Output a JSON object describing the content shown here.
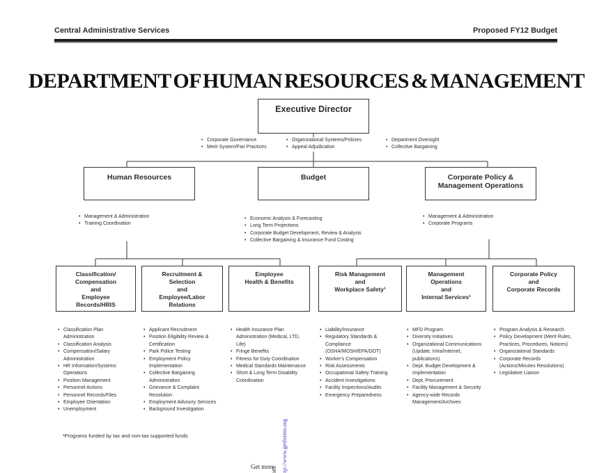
{
  "header": {
    "left": "Central Administrative Services",
    "right": "Proposed FY12 Budget"
  },
  "title": "DEPARTMENT OF HUMAN RESOURCES & MANAGEMENT",
  "org": {
    "root": {
      "label": "Executive Director",
      "bullet_columns": [
        [
          "Corporate Governance",
          "Merit System/Fair Practices"
        ],
        [
          "Organizational Systems/Policies",
          "Appeal Adjudication"
        ],
        [
          "Department Oversight",
          "Collective Bargaining"
        ]
      ]
    },
    "level2": [
      {
        "label": "Human Resources",
        "bullets": [
          "Management & Administration",
          "Training Coordination"
        ]
      },
      {
        "label": "Budget",
        "bullets": [
          "Economic Analysis & Forecasting",
          "Long Term Projections",
          "Corporate Budget Development, Review & Analysis",
          "Collective Bargaining & Insurance Fund Costing"
        ]
      },
      {
        "label": "Corporate Policy &\nManagement Operations",
        "bullets": [
          "Management & Administration",
          "Corporate Programs"
        ]
      }
    ],
    "level3": [
      {
        "label": "Classification/\nCompensation\nand\nEmployee\nRecords/HRIS",
        "bullets": [
          "Classification Plan Administration",
          "Classification Analysis",
          "Compensation/Salary Administration",
          "HR Information/Systems Operations",
          "Position Management",
          "Personnel Actions",
          "Personnel Records/Files",
          "Employee Orientation",
          "Unemployment"
        ]
      },
      {
        "label": "Recruitment &\nSelection\nand\nEmployee/Labor\nRelations",
        "bullets": [
          "Applicant Recruitment",
          "Position Eligibility Review & Certification",
          "Park Police Testing",
          "Employment Policy Implementation",
          "Collective Bargaining Administration",
          "Grievance & Complaint Resolution",
          "Employment Advisory Services",
          "Background Investigation"
        ]
      },
      {
        "label": "Employee\nHealth & Benefits",
        "bullets": [
          "Health Insurance Plan Administration (Medical, LTD, Life)",
          "Fringe Benefits",
          "Fitness for Duty Coordination",
          "Medical Standards Maintenance",
          "Short & Long Term Disability Coordination"
        ]
      },
      {
        "label": "Risk Management\nand\nWorkplace Safety¹",
        "bullets": [
          "Liability/Insurance",
          "Regulatory Standards & Compliance (OSHA/MOSH/EPA/DOT)",
          "Worker's Compensation",
          "Risk Assessments",
          "Occupational Safety Training",
          "Accident Investigations",
          "Facility Inspections/Audits",
          "Emergency Preparedness"
        ]
      },
      {
        "label": "Management\nOperations\nand\nInternal Services¹",
        "bullets": [
          "MFD Program",
          "Diversity Initiatives",
          "Organizational Communications (Update, Intra/Internet, publications)",
          "Dept. Budget Development & Implementation",
          "Dept. Procurement",
          "Facility Management & Security",
          "Agency-wide Records Management/Archives"
        ]
      },
      {
        "label": "Corporate Policy\nand\nCorporate Records",
        "bullets": [
          "Program Analysis & Research",
          "Policy  Development (Merit Rules, Practices, Procedures, Notices)",
          "Organizational Standards",
          "Corporate Records (Actions/Minutes Resolutions)",
          "Legislative Liaison"
        ]
      }
    ]
  },
  "footnote": "¹Programs funded by tax and non-tax supported funds",
  "watermark": {
    "prefix": "Get more",
    "rotated_part": "rom",
    "url": "http://www.getforms.org",
    "url_color": "#3b3bc8"
  }
}
